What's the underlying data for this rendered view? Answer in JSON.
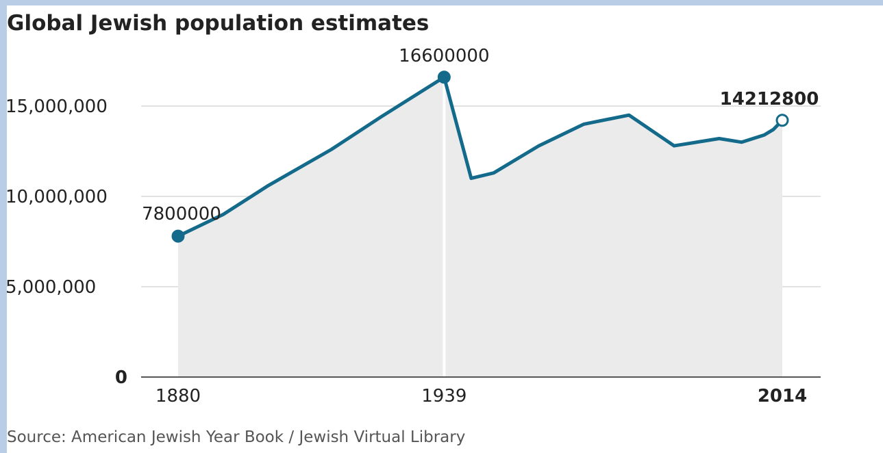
{
  "chart_data": {
    "type": "area",
    "title": "Global Jewish population estimates",
    "source": "Source: American Jewish Year Book / Jewish Virtual Library",
    "x": [
      1880,
      1890,
      1900,
      1914,
      1925,
      1939,
      1945,
      1950,
      1960,
      1970,
      1980,
      1990,
      2000,
      2005,
      2010,
      2012,
      2014
    ],
    "values": [
      7800000,
      9000000,
      10600000,
      12600000,
      14400000,
      16600000,
      11000000,
      11300000,
      12800000,
      14000000,
      14500000,
      12800000,
      13200000,
      13000000,
      13400000,
      13700000,
      14212800
    ],
    "ylim": [
      0,
      16600000
    ],
    "yticks": [
      {
        "value": 0,
        "label": "0"
      },
      {
        "value": 5000000,
        "label": "5,000,000"
      },
      {
        "value": 10000000,
        "label": "10,000,000"
      },
      {
        "value": 15000000,
        "label": "15,000,000"
      }
    ],
    "xticks": [
      {
        "value": 1880,
        "label": "1880"
      },
      {
        "value": 1939,
        "label": "1939"
      },
      {
        "value": 2014,
        "label": "2014"
      }
    ],
    "annotations": [
      {
        "x": 1880,
        "value": 7800000,
        "label": "7800000"
      },
      {
        "x": 1939,
        "value": 16600000,
        "label": "16600000"
      },
      {
        "x": 2014,
        "value": 14212800,
        "label": "14212800"
      }
    ],
    "grid": true,
    "colors": {
      "line": "#136a8a",
      "area": "#ebebeb",
      "grid": "#d8d8d8"
    }
  }
}
